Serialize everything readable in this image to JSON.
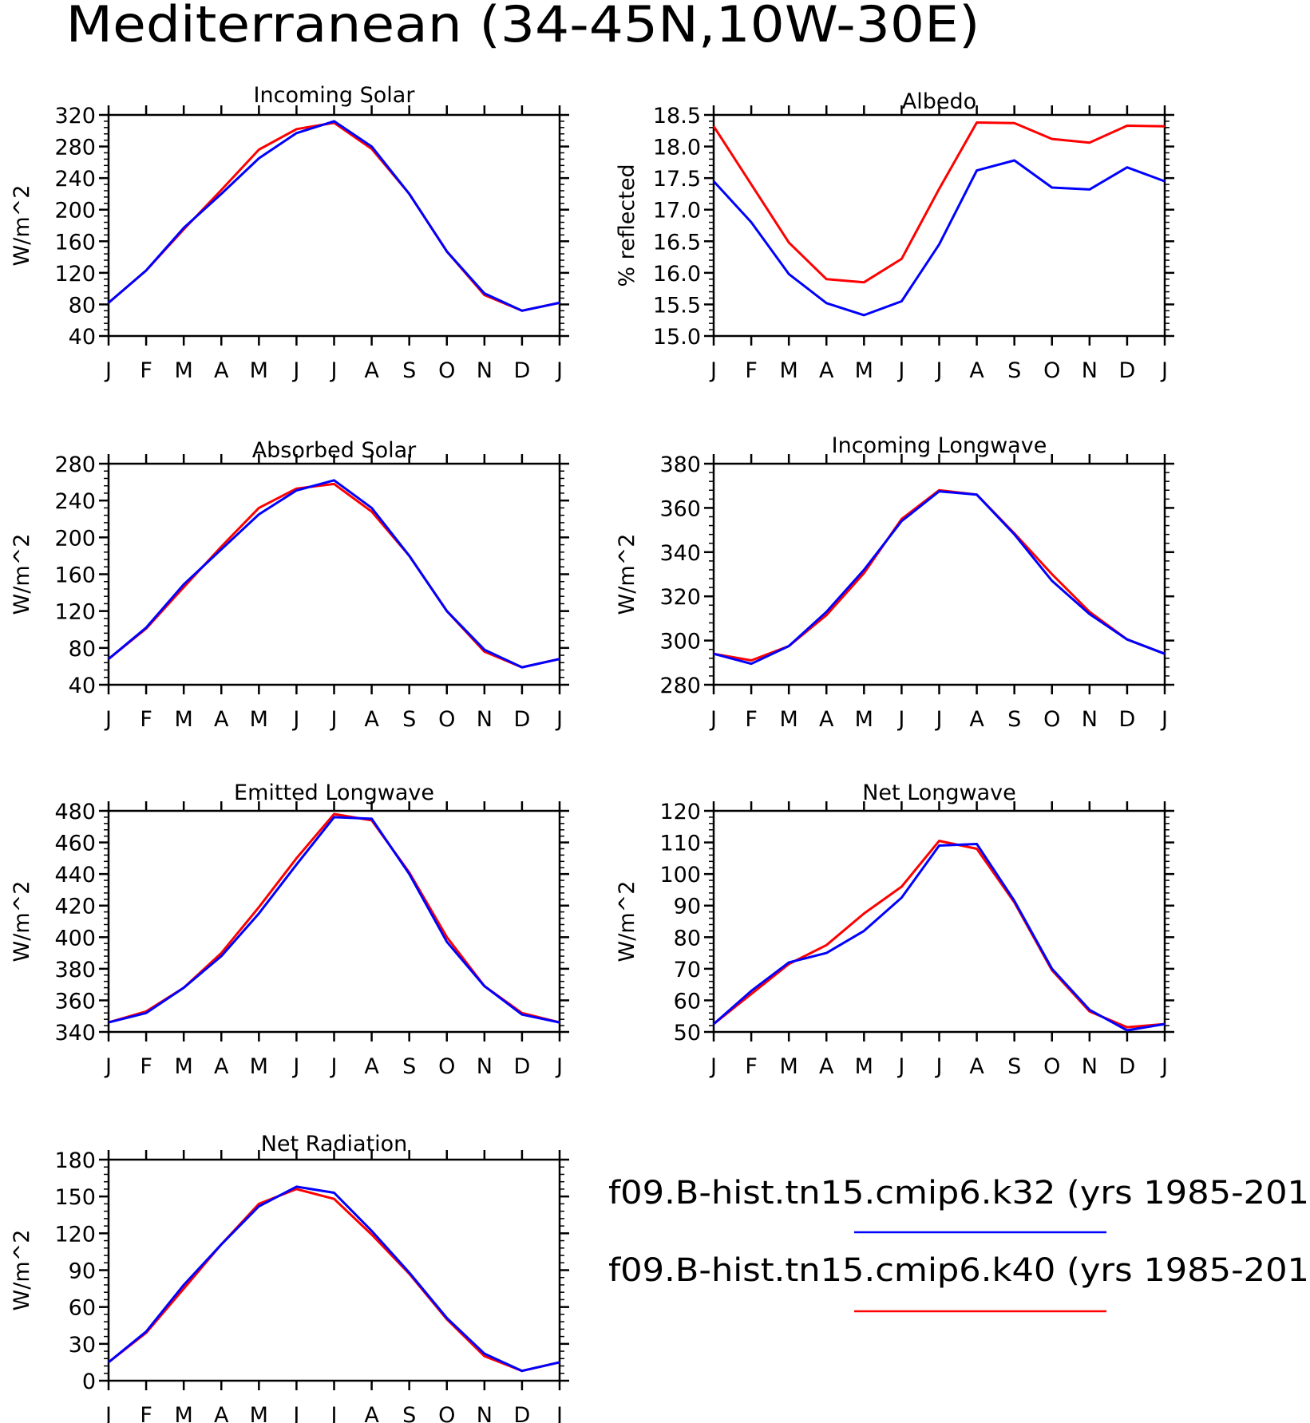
{
  "title": "Mediterranean (34-45N,10W-30E)",
  "month_labels": [
    "J",
    "F",
    "M",
    "A",
    "M",
    "J",
    "J",
    "A",
    "S",
    "O",
    "N",
    "D",
    "J"
  ],
  "colors": {
    "k32": "#0000ff",
    "k40": "#ff0000",
    "axis": "#000000",
    "background": "#ffffff"
  },
  "legend": {
    "entries": [
      {
        "label": "f09.B-hist.tn15.cmip6.k32 (yrs 1985-201",
        "color": "#0000ff"
      },
      {
        "label": "f09.B-hist.tn15.cmip6.k40 (yrs 1985-201",
        "color": "#ff0000"
      }
    ]
  },
  "chart_data": [
    {
      "type": "line",
      "title": "Incoming Solar",
      "ylabel": "W/m^2",
      "ylim": [
        40,
        320
      ],
      "yticks": [
        40,
        80,
        120,
        160,
        200,
        240,
        280,
        320
      ],
      "ytick_labels": [
        "40",
        "80",
        "120",
        "160",
        "200",
        "240",
        "280",
        "320"
      ],
      "series": [
        {
          "name": "f09.B-hist.tn15.cmip6.k32 (yrs 1985-201",
          "color": "#0000ff",
          "values": [
            82,
            123,
            177,
            220,
            265,
            297,
            312,
            280,
            220,
            147,
            94,
            72,
            82
          ]
        },
        {
          "name": "f09.B-hist.tn15.cmip6.k40 (yrs 1985-201",
          "color": "#ff0000",
          "values": [
            82,
            123,
            175,
            225,
            276,
            302,
            310,
            277,
            220,
            147,
            92,
            72,
            82
          ]
        }
      ]
    },
    {
      "type": "line",
      "title": "Albedo",
      "ylabel": "% reflected",
      "ylim": [
        15.0,
        18.5
      ],
      "yticks": [
        15.0,
        15.5,
        16.0,
        16.5,
        17.0,
        17.5,
        18.0,
        18.5
      ],
      "ytick_labels": [
        "15.0",
        "15.5",
        "16.0",
        "16.5",
        "17.0",
        "17.5",
        "18.0",
        "18.5"
      ],
      "series": [
        {
          "name": "f09.B-hist.tn15.cmip6.k32 (yrs 1985-201",
          "color": "#0000ff",
          "values": [
            17.45,
            16.8,
            15.98,
            15.52,
            15.33,
            15.55,
            16.45,
            17.62,
            17.78,
            17.35,
            17.32,
            17.67,
            17.45
          ]
        },
        {
          "name": "f09.B-hist.tn15.cmip6.k40 (yrs 1985-201",
          "color": "#ff0000",
          "values": [
            18.32,
            17.4,
            16.48,
            15.9,
            15.85,
            16.22,
            17.33,
            18.38,
            18.37,
            18.12,
            18.06,
            18.33,
            18.32
          ]
        }
      ]
    },
    {
      "type": "line",
      "title": "Absorbed Solar",
      "ylabel": "W/m^2",
      "ylim": [
        40,
        280
      ],
      "yticks": [
        40,
        80,
        120,
        160,
        200,
        240,
        280
      ],
      "ytick_labels": [
        "40",
        "80",
        "120",
        "160",
        "200",
        "240",
        "280"
      ],
      "series": [
        {
          "name": "f09.B-hist.tn15.cmip6.k32 (yrs 1985-201",
          "color": "#0000ff",
          "values": [
            68,
            102,
            149,
            187,
            225,
            251,
            262,
            232,
            180,
            120,
            78,
            59,
            68
          ]
        },
        {
          "name": "f09.B-hist.tn15.cmip6.k40 (yrs 1985-201",
          "color": "#ff0000",
          "values": [
            68,
            101,
            146,
            190,
            232,
            253,
            258,
            228,
            180,
            120,
            76,
            59,
            68
          ]
        }
      ]
    },
    {
      "type": "line",
      "title": "Incoming Longwave",
      "ylabel": "W/m^2",
      "ylim": [
        280,
        380
      ],
      "yticks": [
        280,
        300,
        320,
        340,
        360,
        380
      ],
      "ytick_labels": [
        "280",
        "300",
        "320",
        "340",
        "360",
        "380"
      ],
      "series": [
        {
          "name": "f09.B-hist.tn15.cmip6.k32 (yrs 1985-201",
          "color": "#0000ff",
          "values": [
            294,
            289.5,
            297.5,
            313,
            332,
            354,
            367.5,
            366,
            348,
            327,
            312,
            300.5,
            294
          ]
        },
        {
          "name": "f09.B-hist.tn15.cmip6.k40 (yrs 1985-201",
          "color": "#ff0000",
          "values": [
            294,
            291,
            297.5,
            311.5,
            330.5,
            355,
            368,
            366,
            348.5,
            330,
            313,
            300.5,
            294
          ]
        }
      ]
    },
    {
      "type": "line",
      "title": "Emitted Longwave",
      "ylabel": "W/m^2",
      "ylim": [
        340,
        480
      ],
      "yticks": [
        340,
        360,
        380,
        400,
        420,
        440,
        460,
        480
      ],
      "ytick_labels": [
        "340",
        "360",
        "380",
        "400",
        "420",
        "440",
        "460",
        "480"
      ],
      "series": [
        {
          "name": "f09.B-hist.tn15.cmip6.k32 (yrs 1985-201",
          "color": "#0000ff",
          "values": [
            346,
            352,
            368,
            388,
            415,
            446,
            476,
            475,
            440,
            397,
            369,
            351,
            346
          ]
        },
        {
          "name": "f09.B-hist.tn15.cmip6.k40 (yrs 1985-201",
          "color": "#ff0000",
          "values": [
            346,
            353,
            368,
            390,
            419,
            450,
            478,
            474,
            441,
            400,
            369,
            352,
            346
          ]
        }
      ]
    },
    {
      "type": "line",
      "title": "Net Longwave",
      "ylabel": "W/m^2",
      "ylim": [
        50,
        120
      ],
      "yticks": [
        50,
        60,
        70,
        80,
        90,
        100,
        110,
        120
      ],
      "ytick_labels": [
        "50",
        "60",
        "70",
        "80",
        "90",
        "100",
        "110",
        "120"
      ],
      "series": [
        {
          "name": "f09.B-hist.tn15.cmip6.k32 (yrs 1985-201",
          "color": "#0000ff",
          "values": [
            52.5,
            63,
            72,
            75,
            82,
            92.5,
            109,
            109.5,
            91.5,
            70,
            57,
            50.5,
            52.5
          ]
        },
        {
          "name": "f09.B-hist.tn15.cmip6.k40 (yrs 1985-201",
          "color": "#ff0000",
          "values": [
            52.5,
            62,
            71.5,
            77.5,
            87.5,
            96,
            110.5,
            108,
            91,
            69.5,
            56.5,
            51.5,
            52.5
          ]
        }
      ]
    },
    {
      "type": "line",
      "title": "Net Radiation",
      "ylabel": "W/m^2",
      "ylim": [
        0,
        180
      ],
      "yticks": [
        0,
        30,
        60,
        90,
        120,
        150,
        180
      ],
      "ytick_labels": [
        "0",
        "30",
        "60",
        "90",
        "120",
        "150",
        "180"
      ],
      "series": [
        {
          "name": "f09.B-hist.tn15.cmip6.k32 (yrs 1985-201",
          "color": "#0000ff",
          "values": [
            15,
            40,
            78,
            111,
            142,
            158,
            153,
            122,
            88,
            51,
            22,
            8,
            15
          ]
        },
        {
          "name": "f09.B-hist.tn15.cmip6.k40 (yrs 1985-201",
          "color": "#ff0000",
          "values": [
            15,
            39,
            75,
            111,
            144,
            156,
            148,
            119,
            87,
            50,
            20,
            8,
            15
          ]
        }
      ]
    }
  ]
}
